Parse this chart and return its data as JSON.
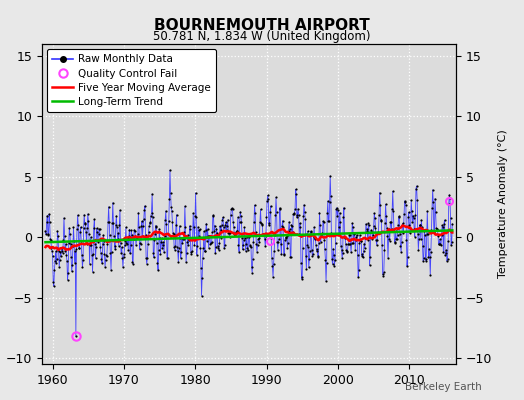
{
  "title": "BOURNEMOUTH AIRPORT",
  "subtitle": "50.781 N, 1.834 W (United Kingdom)",
  "ylabel": "Temperature Anomaly (°C)",
  "watermark": "Berkeley Earth",
  "xlim": [
    1958.5,
    2016.5
  ],
  "ylim": [
    -10.5,
    16
  ],
  "yticks": [
    -10,
    -5,
    0,
    5,
    10,
    15
  ],
  "xticks": [
    1960,
    1970,
    1980,
    1990,
    2000,
    2010
  ],
  "raw_color": "#3333ff",
  "ma_color": "#ff0000",
  "trend_color": "#00bb00",
  "qc_color": "#ff44ff",
  "bg_color": "#dcdcdc",
  "fig_color": "#e8e8e8",
  "start_year": 1959,
  "end_year": 2016,
  "seed": 42,
  "qc_year": 1963.25,
  "qc_value": -8.2,
  "qc_year2": 2015.5,
  "qc_value2": 3.0,
  "qc_year3": 1990.5,
  "qc_value3": -0.3
}
